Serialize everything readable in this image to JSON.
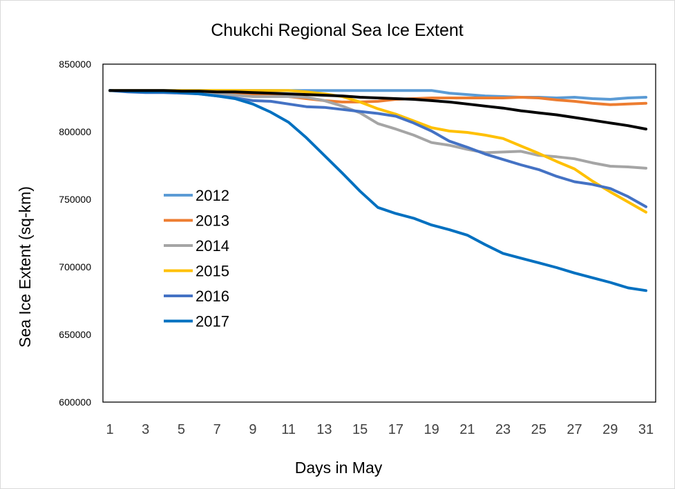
{
  "chart_data": {
    "type": "line",
    "title": "Chukchi Regional Sea Ice Extent",
    "xlabel": "Days in May",
    "ylabel": "Sea Ice Extent (sq-km)",
    "xlim": [
      1,
      31
    ],
    "ylim": [
      600000,
      850000
    ],
    "yticks": [
      "600000",
      "650000",
      "700000",
      "750000",
      "800000",
      "850000"
    ],
    "xticks": [
      "1",
      "3",
      "5",
      "7",
      "9",
      "11",
      "13",
      "15",
      "17",
      "19",
      "21",
      "23",
      "25",
      "27",
      "29",
      "31"
    ],
    "x": [
      1,
      2,
      3,
      4,
      5,
      6,
      7,
      8,
      9,
      10,
      11,
      12,
      13,
      14,
      15,
      16,
      17,
      18,
      19,
      20,
      21,
      22,
      23,
      24,
      25,
      26,
      27,
      28,
      29,
      30,
      31
    ],
    "grid": false,
    "legend_position": "left-middle",
    "series": [
      {
        "name": "2012",
        "color": "#5b9bd5",
        "in_legend": true,
        "values": [
          830500,
          830500,
          830500,
          830500,
          830500,
          830500,
          830500,
          830500,
          830500,
          830500,
          830500,
          830500,
          830500,
          830500,
          830500,
          830500,
          830500,
          830500,
          830500,
          828500,
          827500,
          826500,
          826000,
          825500,
          825500,
          825000,
          825500,
          824500,
          824000,
          825000,
          825500
        ]
      },
      {
        "name": "2013",
        "color": "#ed7d31",
        "in_legend": true,
        "values": [
          830500,
          830000,
          830000,
          830000,
          829500,
          829500,
          829000,
          828500,
          828000,
          827000,
          826000,
          824500,
          823000,
          822000,
          822000,
          822500,
          824000,
          824500,
          825000,
          825000,
          825000,
          825000,
          825000,
          825500,
          825000,
          823500,
          822500,
          821000,
          820000,
          820500,
          821000
        ]
      },
      {
        "name": "2014",
        "color": "#a5a5a5",
        "in_legend": true,
        "values": [
          830500,
          830000,
          829500,
          829500,
          829000,
          828500,
          828000,
          827000,
          826000,
          826000,
          826000,
          825500,
          823000,
          819000,
          814000,
          806000,
          802000,
          797500,
          792000,
          790000,
          787000,
          784500,
          785000,
          785500,
          782500,
          781500,
          780000,
          777000,
          774500,
          774000,
          773000
        ]
      },
      {
        "name": "2015",
        "color": "#ffc000",
        "in_legend": true,
        "values": [
          830500,
          830500,
          830500,
          830500,
          830500,
          830500,
          830500,
          830500,
          830500,
          830500,
          830500,
          829500,
          828000,
          826000,
          822000,
          817000,
          813000,
          808000,
          803000,
          800500,
          799500,
          797500,
          795000,
          789500,
          784000,
          778000,
          772500,
          763500,
          755500,
          748000,
          740500
        ]
      },
      {
        "name": "2016",
        "color": "#4472c4",
        "in_legend": true,
        "values": [
          830500,
          829500,
          829000,
          829000,
          828500,
          828000,
          826500,
          825000,
          823000,
          822500,
          820500,
          818500,
          818000,
          816500,
          815000,
          813500,
          811500,
          806500,
          800500,
          793000,
          788500,
          783500,
          779500,
          775500,
          772000,
          767000,
          763000,
          761000,
          758000,
          752000,
          744500
        ]
      },
      {
        "name": "2017",
        "color": "#0070c0",
        "in_legend": true,
        "values": [
          830500,
          830000,
          829500,
          829500,
          829000,
          828000,
          826500,
          824500,
          820500,
          814500,
          807000,
          795500,
          782500,
          769500,
          756000,
          744000,
          739500,
          736000,
          731000,
          727500,
          723500,
          716500,
          710000,
          706500,
          703000,
          699500,
          695500,
          692000,
          688500,
          684500,
          682500
        ]
      },
      {
        "name": "",
        "color": "#000000",
        "in_legend": false,
        "values": [
          830500,
          830500,
          830500,
          830500,
          830000,
          830000,
          829500,
          829500,
          829000,
          828500,
          828000,
          827500,
          827000,
          826500,
          825500,
          825000,
          824500,
          824000,
          823000,
          822000,
          820500,
          819000,
          817500,
          815500,
          814000,
          812500,
          810500,
          808500,
          806500,
          804500,
          802000
        ]
      }
    ]
  }
}
